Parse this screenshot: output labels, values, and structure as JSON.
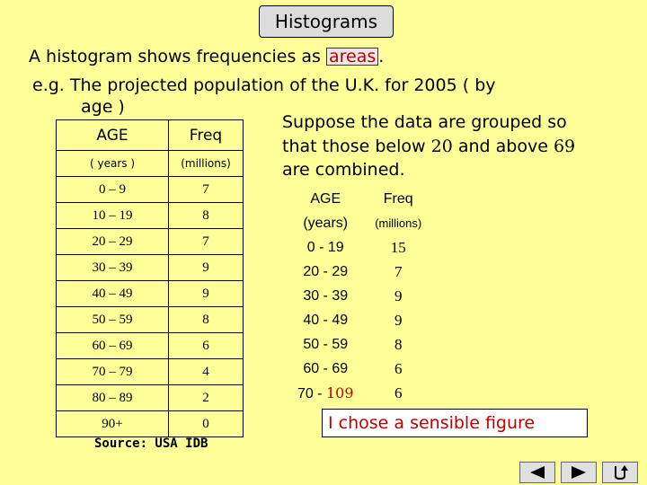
{
  "title": "Histograms",
  "intro": {
    "line1_a": "A histogram shows frequencies as ",
    "line1_highlight": "areas",
    "line1_b": ".",
    "line2": "e.g. The projected population of the U.K. for 2005 ( by",
    "line3": "age )"
  },
  "table1": {
    "header_age": "AGE",
    "header_freq": "Freq",
    "sub_age": "( years )",
    "sub_freq": "(millions)",
    "rows": [
      {
        "age": "0 – 9",
        "freq": "7"
      },
      {
        "age": "10 – 19",
        "freq": "8"
      },
      {
        "age": "20 – 29",
        "freq": "7"
      },
      {
        "age": "30 – 39",
        "freq": "9"
      },
      {
        "age": "40 – 49",
        "freq": "9"
      },
      {
        "age": "50 – 59",
        "freq": "8"
      },
      {
        "age": "60 – 69",
        "freq": "6"
      },
      {
        "age": "70 – 79",
        "freq": "4"
      },
      {
        "age": "80 – 89",
        "freq": "2"
      },
      {
        "age": "90+",
        "freq": "0"
      }
    ],
    "source": "Source: USA IDB"
  },
  "suppose": {
    "line1": "Suppose the data are grouped so",
    "line2_a": "that those below ",
    "line2_n1": "20",
    "line2_b": " and above ",
    "line2_n2": "69",
    "line3": "are combined."
  },
  "table2": {
    "header_age": "AGE",
    "header_freq": "Freq",
    "sub_age": "(years)",
    "sub_freq": "(millions)",
    "rows": [
      {
        "age": "0 - 19",
        "freq": "15"
      },
      {
        "age": "20 - 29",
        "freq": "7"
      },
      {
        "age": "30 - 39",
        "freq": "9"
      },
      {
        "age": "40 - 49",
        "freq": "9"
      },
      {
        "age": "50 - 59",
        "freq": "8"
      },
      {
        "age": "60 - 69",
        "freq": "6"
      }
    ],
    "last_age_a": "70 - ",
    "last_age_b": "109",
    "last_freq": "6"
  },
  "note": "I chose a sensible figure",
  "nav": {
    "icons": [
      "back-icon",
      "forward-icon",
      "return-icon"
    ]
  },
  "colors": {
    "background": "#ffff99",
    "highlight": "#c00000"
  }
}
